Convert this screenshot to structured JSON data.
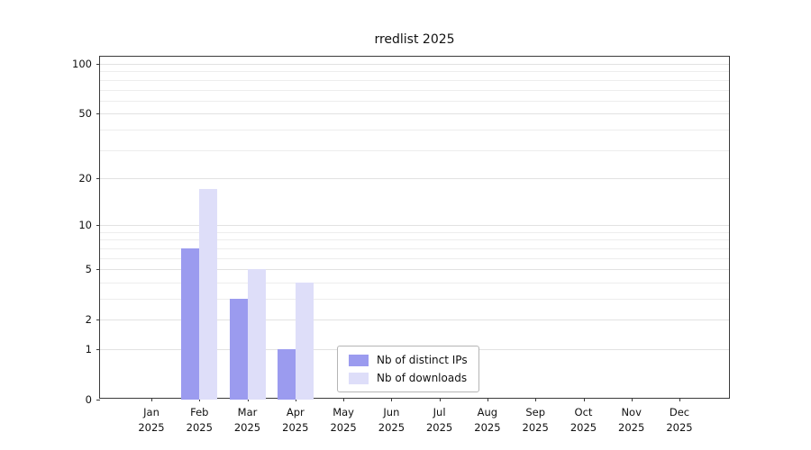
{
  "chart_data": {
    "type": "bar",
    "title": "rredlist 2025",
    "year": "2025",
    "categories": [
      "Jan",
      "Feb",
      "Mar",
      "Apr",
      "May",
      "Jun",
      "Jul",
      "Aug",
      "Sep",
      "Oct",
      "Nov",
      "Dec"
    ],
    "series": [
      {
        "name": "Nb of distinct IPs",
        "color": "#9b9bef",
        "values": [
          0,
          7,
          3,
          1,
          0,
          0,
          0,
          0,
          0,
          0,
          0,
          0
        ]
      },
      {
        "name": "Nb of downloads",
        "color": "#dedef9",
        "values": [
          0,
          17,
          5,
          4,
          0,
          0,
          0,
          0,
          0,
          0,
          0,
          0
        ]
      }
    ],
    "yticks": [
      0,
      1,
      2,
      5,
      10,
      20,
      50,
      100
    ],
    "minor_gridlines": [
      1,
      2,
      3,
      4,
      5,
      6,
      7,
      8,
      9,
      10,
      20,
      30,
      40,
      50,
      60,
      70,
      80,
      90,
      100
    ],
    "ylim": [
      0,
      100
    ],
    "scale": "log1p",
    "grid": "horizontal",
    "legend_position": "lower-center"
  }
}
